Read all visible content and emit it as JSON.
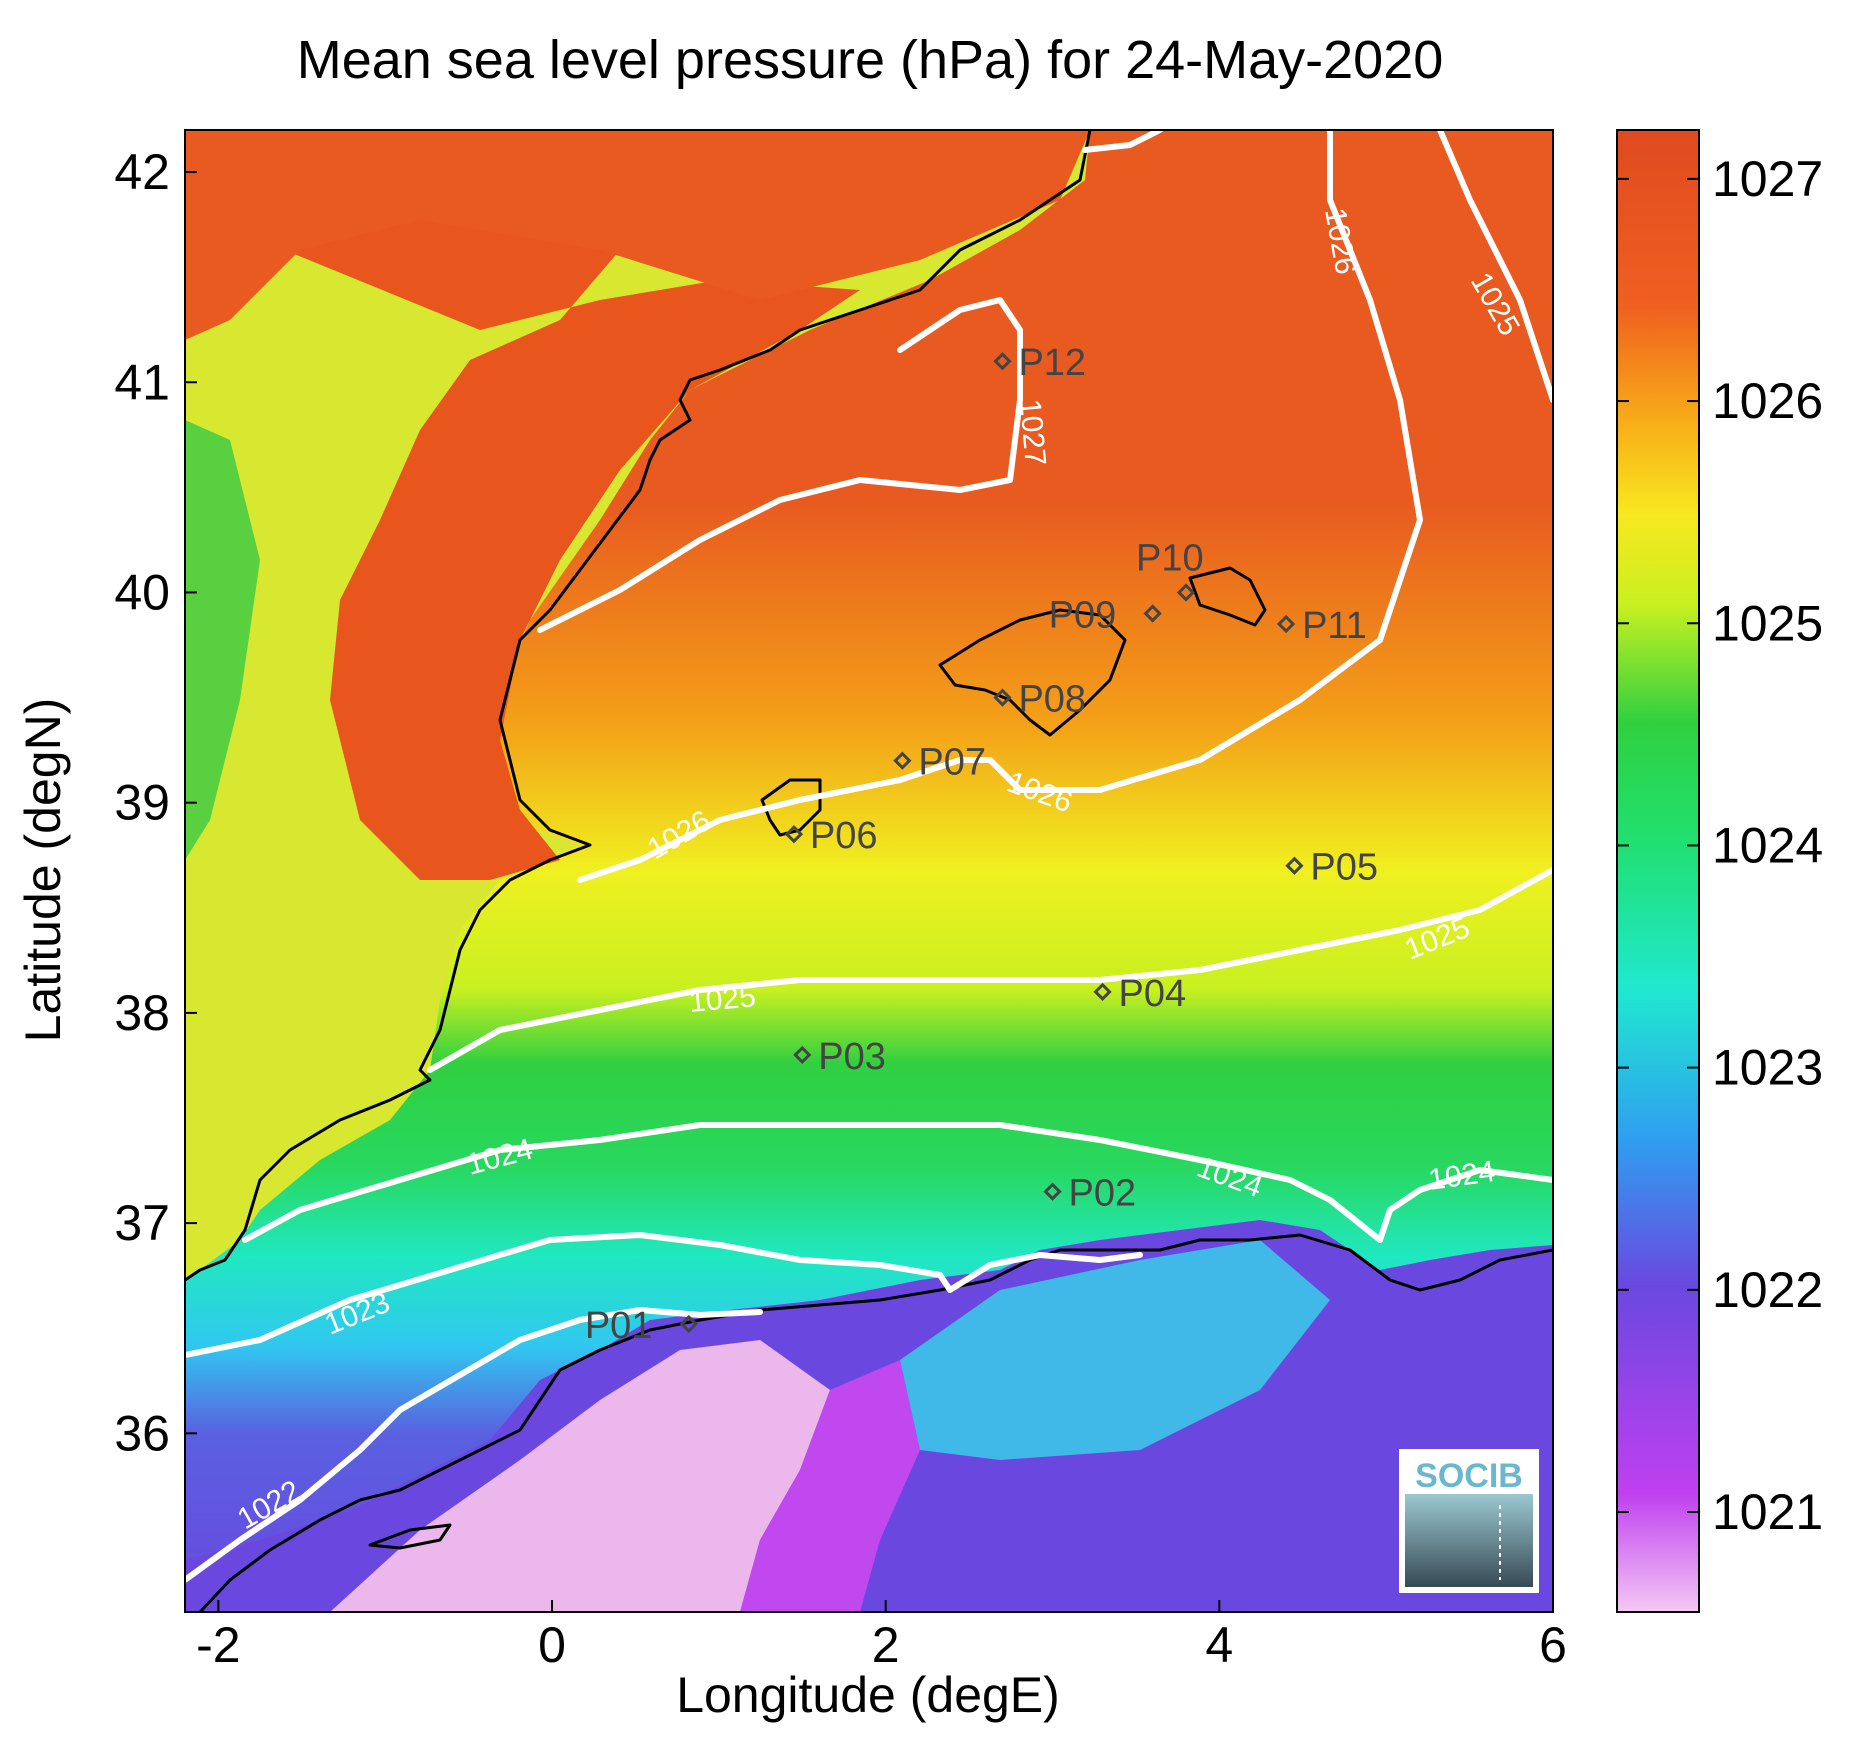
{
  "title": "Mean sea level pressure (hPa) for 24-May-2020",
  "xlabel": "Longitude (degE)",
  "ylabel": "Latitude (degN)",
  "x_ticks": [
    "-2",
    "0",
    "2",
    "4",
    "6"
  ],
  "y_ticks": [
    "42",
    "41",
    "40",
    "39",
    "38",
    "37",
    "36"
  ],
  "colorbar": {
    "ticks": [
      "1027",
      "1026",
      "1025",
      "1024",
      "1023",
      "1022",
      "1021"
    ],
    "colors": [
      "#f4c8f4",
      "#c040f0",
      "#6a48e0",
      "#2ec0f0",
      "#20e8c0",
      "#30d840",
      "#c8f020",
      "#f8e020",
      "#f8a018",
      "#f06020",
      "#e04a20"
    ]
  },
  "contour_labels": [
    "1027",
    "1026",
    "1026",
    "1026",
    "1025",
    "1025",
    "1025",
    "1024",
    "1024",
    "1024",
    "1023",
    "1022"
  ],
  "stations": [
    {
      "label": "P01",
      "lon": 0.82,
      "lat": 36.52
    },
    {
      "label": "P02",
      "lon": 3.0,
      "lat": 37.15
    },
    {
      "label": "P03",
      "lon": 1.5,
      "lat": 37.8
    },
    {
      "label": "P04",
      "lon": 3.3,
      "lat": 38.1
    },
    {
      "label": "P05",
      "lon": 4.45,
      "lat": 38.7
    },
    {
      "label": "P06",
      "lon": 1.45,
      "lat": 38.85
    },
    {
      "label": "P07",
      "lon": 2.1,
      "lat": 39.2
    },
    {
      "label": "P08",
      "lon": 2.7,
      "lat": 39.5
    },
    {
      "label": "P09",
      "lon": 3.6,
      "lat": 39.9
    },
    {
      "label": "P10",
      "lon": 3.8,
      "lat": 40.0
    },
    {
      "label": "P11",
      "lon": 4.4,
      "lat": 39.85
    },
    {
      "label": "P12",
      "lon": 2.7,
      "lat": 41.1
    }
  ],
  "logo_text": "SOCIB"
}
